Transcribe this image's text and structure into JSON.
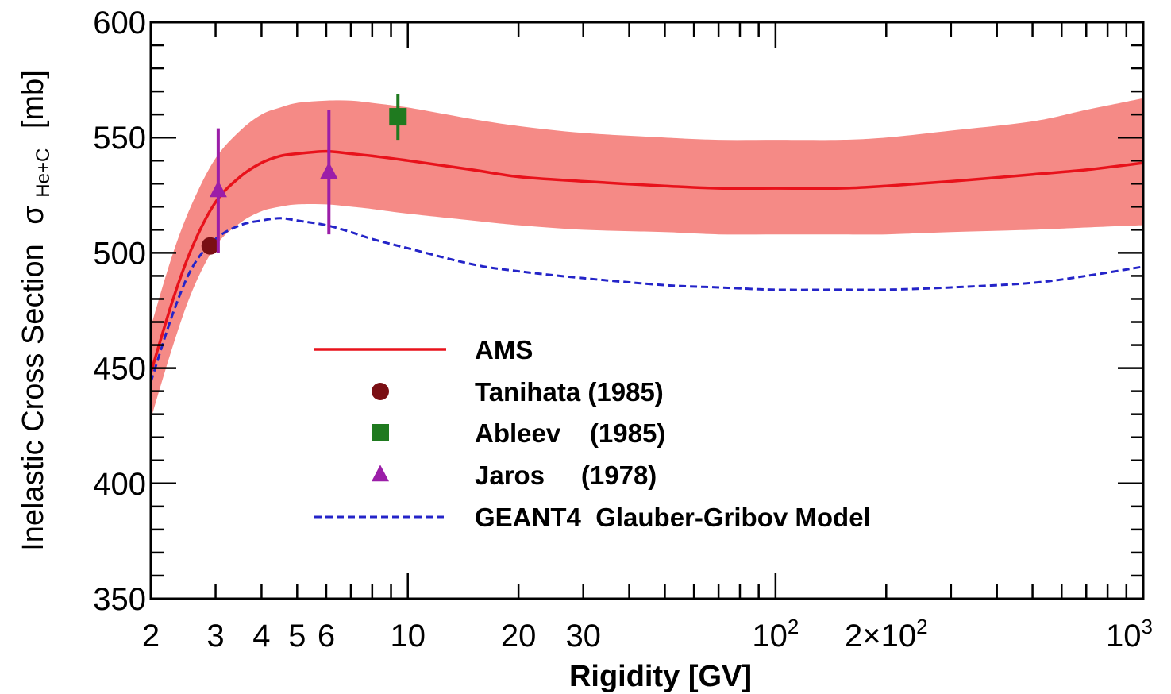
{
  "chart_data": {
    "type": "line",
    "title": "",
    "xlabel": "Rigidity [GV]",
    "ylabel_main": "Inelastic Cross Section",
    "ylabel_symbol": "σ",
    "ylabel_subscript": "He+C",
    "ylabel_unit": "[mb]",
    "x_scale": "log",
    "xlim": [
      2,
      1000
    ],
    "ylim": [
      350,
      600
    ],
    "grid": false,
    "legend_position": "center-left",
    "x_ticks": [
      {
        "value": 2,
        "label": "2"
      },
      {
        "value": 3,
        "label": "3"
      },
      {
        "value": 4,
        "label": "4"
      },
      {
        "value": 5,
        "label": "5"
      },
      {
        "value": 6,
        "label": "6"
      },
      {
        "value": 10,
        "label": "10"
      },
      {
        "value": 20,
        "label": "20"
      },
      {
        "value": 30,
        "label": "30"
      },
      {
        "value": 100,
        "label": "10",
        "sup": "2"
      },
      {
        "value": 200,
        "label": "2×10",
        "sup": "2"
      },
      {
        "value": 1000,
        "label": "10",
        "sup": "3"
      }
    ],
    "y_ticks": [
      350,
      400,
      450,
      500,
      550,
      600
    ],
    "series": [
      {
        "name": "AMS",
        "kind": "line",
        "color": "#e8121b",
        "band_color": "#f58a86",
        "x": [
          2.0,
          2.3,
          2.6,
          3.0,
          3.5,
          4.0,
          4.5,
          5.0,
          6.0,
          7.0,
          8.0,
          10,
          15,
          20,
          30,
          50,
          70,
          100,
          150,
          200,
          300,
          500,
          700,
          1000
        ],
        "y": [
          448,
          480,
          503,
          522,
          533,
          539,
          542,
          543,
          544,
          543,
          542,
          540,
          536,
          533,
          531,
          529,
          528,
          528,
          528,
          529,
          531,
          534,
          536,
          539
        ],
        "low": [
          428,
          460,
          484,
          503,
          513,
          518,
          520,
          521,
          521,
          520,
          519,
          517,
          514,
          512,
          510,
          509,
          508,
          508,
          508,
          508,
          509,
          510,
          511,
          512
        ],
        "high": [
          468,
          500,
          522,
          541,
          553,
          560,
          563,
          565,
          566,
          566,
          565,
          563,
          558,
          555,
          552,
          550,
          549,
          549,
          549,
          550,
          553,
          557,
          562,
          567
        ]
      },
      {
        "name": "Tanihata (1985)",
        "kind": "points",
        "marker": "circle",
        "color": "#7a0f14",
        "points": [
          {
            "x": 2.9,
            "y": 503,
            "err": 2
          }
        ]
      },
      {
        "name": "Ableev    (1985)",
        "kind": "points",
        "marker": "square",
        "color": "#1f7a1f",
        "points": [
          {
            "x": 9.4,
            "y": 559,
            "err": 10
          }
        ]
      },
      {
        "name": "Jaros     (1978)",
        "kind": "points",
        "marker": "triangle",
        "color": "#9b1ea8",
        "points": [
          {
            "x": 3.05,
            "y": 527,
            "err": 27
          },
          {
            "x": 6.1,
            "y": 535,
            "err": 27
          }
        ]
      },
      {
        "name": "GEANT4  Glauber-Gribov Model",
        "kind": "dashed-line",
        "color": "#2424c8",
        "x": [
          2.0,
          2.3,
          2.6,
          3.0,
          3.5,
          4.0,
          4.5,
          5.0,
          6.0,
          7.0,
          8.0,
          10,
          15,
          20,
          30,
          50,
          70,
          100,
          150,
          200,
          300,
          500,
          700,
          1000
        ],
        "y": [
          444,
          474,
          494,
          506,
          512,
          514,
          515,
          514,
          512,
          509,
          506,
          502,
          495,
          492,
          489,
          486,
          485,
          484,
          484,
          484,
          485,
          487,
          490,
          494
        ]
      }
    ]
  }
}
